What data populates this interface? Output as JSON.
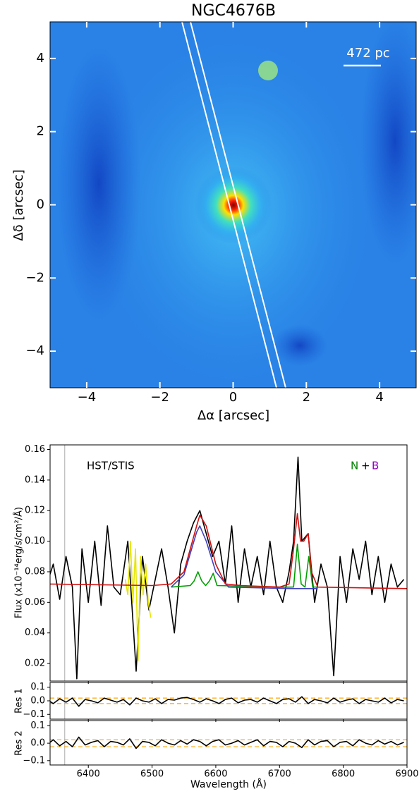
{
  "chart_data": [
    {
      "type": "image",
      "title": "NGC4676B",
      "xlabel": "Δα [arcsec]",
      "ylabel": "Δδ [arcsec]",
      "xlim": [
        -5,
        5
      ],
      "ylim": [
        -5,
        5
      ],
      "xticks": [
        {
          "value": -4,
          "label": "−4"
        },
        {
          "value": -2,
          "label": "−2"
        },
        0,
        2,
        4
      ],
      "yticks": [
        {
          "value": -4,
          "label": "−4"
        },
        {
          "value": -2,
          "label": "−2"
        },
        0,
        2,
        4
      ],
      "annotation": "472 pc"
    },
    {
      "type": "line",
      "ylabel": "Flux (x10⁻¹⁴erg/s/cm²/Å)",
      "xlim": [
        6340,
        6900
      ],
      "ylim": [
        0.0085,
        0.163
      ],
      "yticks": [
        0.02,
        0.04,
        0.06,
        0.08,
        {
          "value": 0.1,
          "label": "0.10"
        },
        0.12,
        0.14,
        0.16
      ],
      "vlines": [
        6363
      ],
      "annotations": [
        "HST/STIS",
        "N",
        "+",
        "B"
      ],
      "series": [
        {
          "color": "#000000",
          "x": [
            6335,
            6345,
            6355,
            6365,
            6375,
            6382,
            6390,
            6400,
            6410,
            6420,
            6430,
            6440,
            6450,
            6462,
            6475,
            6485,
            6495,
            6505,
            6515,
            6525,
            6535,
            6545,
            6555,
            6565,
            6575,
            6585,
            6595,
            6605,
            6615,
            6625,
            6635,
            6645,
            6655,
            6665,
            6675,
            6685,
            6695,
            6705,
            6715,
            6722,
            6729,
            6735,
            6745,
            6755,
            6765,
            6775,
            6785,
            6795,
            6805,
            6815,
            6825,
            6835,
            6845,
            6855,
            6865,
            6875,
            6885,
            6895
          ],
          "values": [
            0.072,
            0.085,
            0.062,
            0.09,
            0.07,
            0.01,
            0.095,
            0.06,
            0.1,
            0.058,
            0.11,
            0.07,
            0.065,
            0.1,
            0.015,
            0.09,
            0.055,
            0.075,
            0.095,
            0.07,
            0.04,
            0.085,
            0.1,
            0.112,
            0.12,
            0.105,
            0.09,
            0.1,
            0.072,
            0.11,
            0.06,
            0.095,
            0.07,
            0.09,
            0.065,
            0.1,
            0.07,
            0.06,
            0.08,
            0.1,
            0.155,
            0.1,
            0.105,
            0.06,
            0.085,
            0.07,
            0.012,
            0.09,
            0.06,
            0.095,
            0.075,
            0.1,
            0.065,
            0.09,
            0.06,
            0.085,
            0.07,
            0.075
          ]
        },
        {
          "color": "#e6e600",
          "x": [
            6458,
            6462,
            6466,
            6470,
            6474,
            6478,
            6482,
            6486,
            6490,
            6494,
            6498
          ],
          "values": [
            0.075,
            0.065,
            0.1,
            0.06,
            0.095,
            0.022,
            0.09,
            0.065,
            0.085,
            0.06,
            0.05
          ]
        },
        {
          "color": "#00a000",
          "x": [
            6530,
            6560,
            6566,
            6572,
            6578,
            6584,
            6590,
            6596,
            6602,
            6700,
            6722,
            6728,
            6734,
            6740,
            6746,
            6752,
            6760
          ],
          "values": [
            0.07,
            0.071,
            0.074,
            0.08,
            0.074,
            0.071,
            0.074,
            0.079,
            0.071,
            0.07,
            0.07,
            0.098,
            0.072,
            0.07,
            0.09,
            0.07,
            0.07
          ]
        },
        {
          "color": "#4040c0",
          "x": [
            6530,
            6550,
            6560,
            6570,
            6575,
            6585,
            6600,
            6620,
            6720,
            6760
          ],
          "values": [
            0.07,
            0.078,
            0.092,
            0.106,
            0.11,
            0.1,
            0.08,
            0.07,
            0.069,
            0.069
          ]
        },
        {
          "color": "#d01010",
          "x": [
            6335,
            6500,
            6530,
            6550,
            6560,
            6570,
            6575,
            6585,
            6600,
            6615,
            6640,
            6700,
            6715,
            6722,
            6728,
            6733,
            6738,
            6745,
            6750,
            6760,
            6900
          ],
          "values": [
            0.072,
            0.071,
            0.072,
            0.08,
            0.095,
            0.11,
            0.117,
            0.11,
            0.085,
            0.072,
            0.071,
            0.07,
            0.072,
            0.095,
            0.118,
            0.1,
            0.1,
            0.105,
            0.08,
            0.07,
            0.069
          ]
        }
      ]
    },
    {
      "type": "line",
      "ylabel": "Res 1",
      "xlim": [
        6340,
        6900
      ],
      "ylim": [
        -0.135,
        0.135
      ],
      "yticks": [
        {
          "value": -0.1,
          "label": "−0.1"
        },
        {
          "value": 0,
          "label": "0.0"
        },
        0.1
      ],
      "vlines": [
        6363
      ],
      "hlines": [
        -0.02,
        0.02
      ],
      "hline_color": "#ffa500",
      "series": [
        {
          "color": "#000000",
          "x": [
            6335,
            6345,
            6355,
            6365,
            6375,
            6385,
            6395,
            6405,
            6415,
            6425,
            6435,
            6445,
            6455,
            6465,
            6475,
            6485,
            6495,
            6505,
            6515,
            6525,
            6535,
            6545,
            6555,
            6565,
            6575,
            6585,
            6595,
            6605,
            6615,
            6625,
            6635,
            6645,
            6655,
            6665,
            6675,
            6685,
            6695,
            6705,
            6715,
            6725,
            6735,
            6745,
            6755,
            6765,
            6775,
            6785,
            6795,
            6805,
            6815,
            6825,
            6835,
            6845,
            6855,
            6865,
            6875,
            6885,
            6895
          ],
          "values": [
            0.01,
            -0.02,
            0.015,
            -0.01,
            0.02,
            -0.04,
            0.01,
            0.0,
            -0.015,
            0.02,
            0.005,
            -0.01,
            0.01,
            -0.03,
            0.02,
            0.0,
            -0.01,
            0.015,
            -0.02,
            0.01,
            0.005,
            0.02,
            0.025,
            0.01,
            -0.01,
            0.015,
            0.0,
            -0.02,
            0.01,
            0.02,
            -0.015,
            0.005,
            0.01,
            -0.01,
            0.02,
            0.0,
            -0.02,
            0.01,
            0.015,
            -0.01,
            0.03,
            -0.02,
            0.01,
            0.0,
            -0.015,
            0.02,
            -0.01,
            0.005,
            0.015,
            -0.02,
            0.01,
            0.0,
            -0.01,
            0.02,
            -0.015,
            0.01,
            0.0
          ]
        }
      ]
    },
    {
      "type": "line",
      "ylabel": "Res 2",
      "xlabel": "Wavelength (Å)",
      "xlim": [
        6340,
        6900
      ],
      "ylim": [
        -0.125,
        0.13
      ],
      "xticks": [
        6400,
        6500,
        6600,
        6700,
        6800,
        6900
      ],
      "yticks": [
        {
          "value": -0.1,
          "label": "−0.1"
        },
        {
          "value": 0,
          "label": "0.0"
        },
        0.1
      ],
      "vlines": [
        6363
      ],
      "hlines": [
        -0.02,
        0.02
      ],
      "hline_color": "#ffa500",
      "series": [
        {
          "color": "#000000",
          "x": [
            6335,
            6345,
            6355,
            6365,
            6375,
            6385,
            6395,
            6405,
            6415,
            6425,
            6435,
            6445,
            6455,
            6465,
            6475,
            6485,
            6495,
            6505,
            6515,
            6525,
            6535,
            6545,
            6555,
            6565,
            6575,
            6585,
            6595,
            6605,
            6615,
            6625,
            6635,
            6645,
            6655,
            6665,
            6675,
            6685,
            6695,
            6705,
            6715,
            6725,
            6735,
            6745,
            6755,
            6765,
            6775,
            6785,
            6795,
            6805,
            6815,
            6825,
            6835,
            6845,
            6855,
            6865,
            6875,
            6885,
            6895
          ],
          "values": [
            -0.01,
            0.02,
            -0.015,
            0.01,
            -0.02,
            0.035,
            -0.01,
            0.005,
            0.015,
            -0.02,
            0.01,
            0.005,
            -0.01,
            0.025,
            -0.03,
            0.01,
            0.005,
            -0.015,
            0.02,
            0.0,
            -0.01,
            0.015,
            -0.005,
            0.02,
            0.01,
            -0.015,
            0.01,
            0.02,
            -0.01,
            0.0,
            0.015,
            -0.01,
            0.005,
            0.02,
            -0.015,
            0.01,
            0.005,
            -0.02,
            0.01,
            0.0,
            -0.025,
            0.02,
            -0.01,
            0.01,
            0.015,
            -0.02,
            0.005,
            0.01,
            -0.015,
            0.02,
            0.0,
            -0.01,
            0.015,
            -0.005,
            0.01,
            -0.01,
            0.005
          ]
        }
      ]
    }
  ]
}
